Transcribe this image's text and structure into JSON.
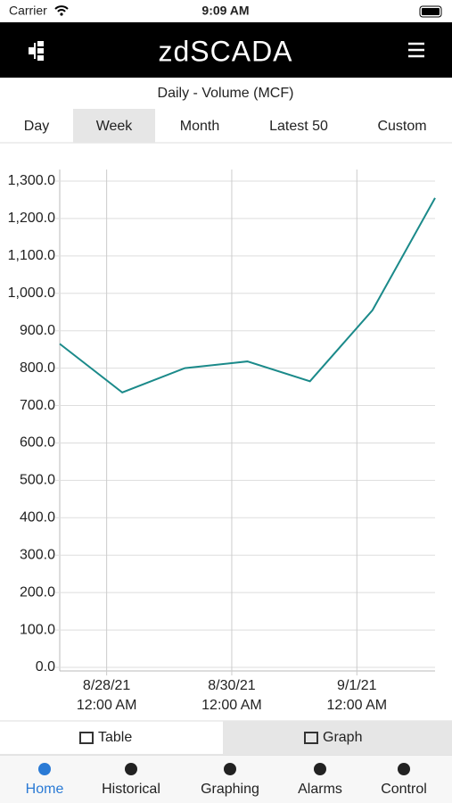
{
  "status_bar": {
    "carrier": "Carrier",
    "time": "9:09 AM"
  },
  "header": {
    "logo": "zdSCADA"
  },
  "range_tabs": {
    "items": [
      "Day",
      "Week",
      "Month",
      "Latest 50",
      "Custom"
    ],
    "selected": 1
  },
  "chart_data": {
    "type": "line",
    "title": "Daily - Volume (MCF)",
    "x": [
      "2021-08-27T06:00",
      "2021-08-28T06:00",
      "2021-08-29T06:00",
      "2021-08-30T06:00",
      "2021-08-31T06:00",
      "2021-09-01T06:00",
      "2021-09-02T06:00"
    ],
    "series": [
      {
        "color": "#1b8a8a",
        "values": [
          865,
          735,
          800,
          818,
          765,
          955,
          1255
        ]
      }
    ],
    "xlim": [
      "2021-08-27T06:00",
      "2021-09-02T06:00"
    ],
    "xticks": [
      {
        "value": "2021-08-28T00:00",
        "label": [
          "8/28/21",
          "12:00 AM"
        ]
      },
      {
        "value": "2021-08-30T00:00",
        "label": [
          "8/30/21",
          "12:00 AM"
        ]
      },
      {
        "value": "2021-09-01T00:00",
        "label": [
          "9/1/21",
          "12:00 AM"
        ]
      }
    ],
    "ylim": [
      0,
      1300
    ],
    "yticks": [
      {
        "value": 0,
        "label": "0.0"
      },
      {
        "value": 100,
        "label": "100.0"
      },
      {
        "value": 200,
        "label": "200.0"
      },
      {
        "value": 300,
        "label": "300.0"
      },
      {
        "value": 400,
        "label": "400.0"
      },
      {
        "value": 500,
        "label": "500.0"
      },
      {
        "value": 600,
        "label": "600.0"
      },
      {
        "value": 700,
        "label": "700.0"
      },
      {
        "value": 800,
        "label": "800.0"
      },
      {
        "value": 900,
        "label": "900.0"
      },
      {
        "value": 1000,
        "label": "1,000.0"
      },
      {
        "value": 1100,
        "label": "1,100.0"
      },
      {
        "value": 1200,
        "label": "1,200.0"
      },
      {
        "value": 1300,
        "label": "1,300.0"
      }
    ],
    "grid": true
  },
  "view_toggle": {
    "items": [
      "Table",
      "Graph"
    ],
    "selected": 1
  },
  "tab_bar": {
    "items": [
      "Home",
      "Historical",
      "Graphing",
      "Alarms",
      "Control"
    ],
    "selected": 0
  }
}
